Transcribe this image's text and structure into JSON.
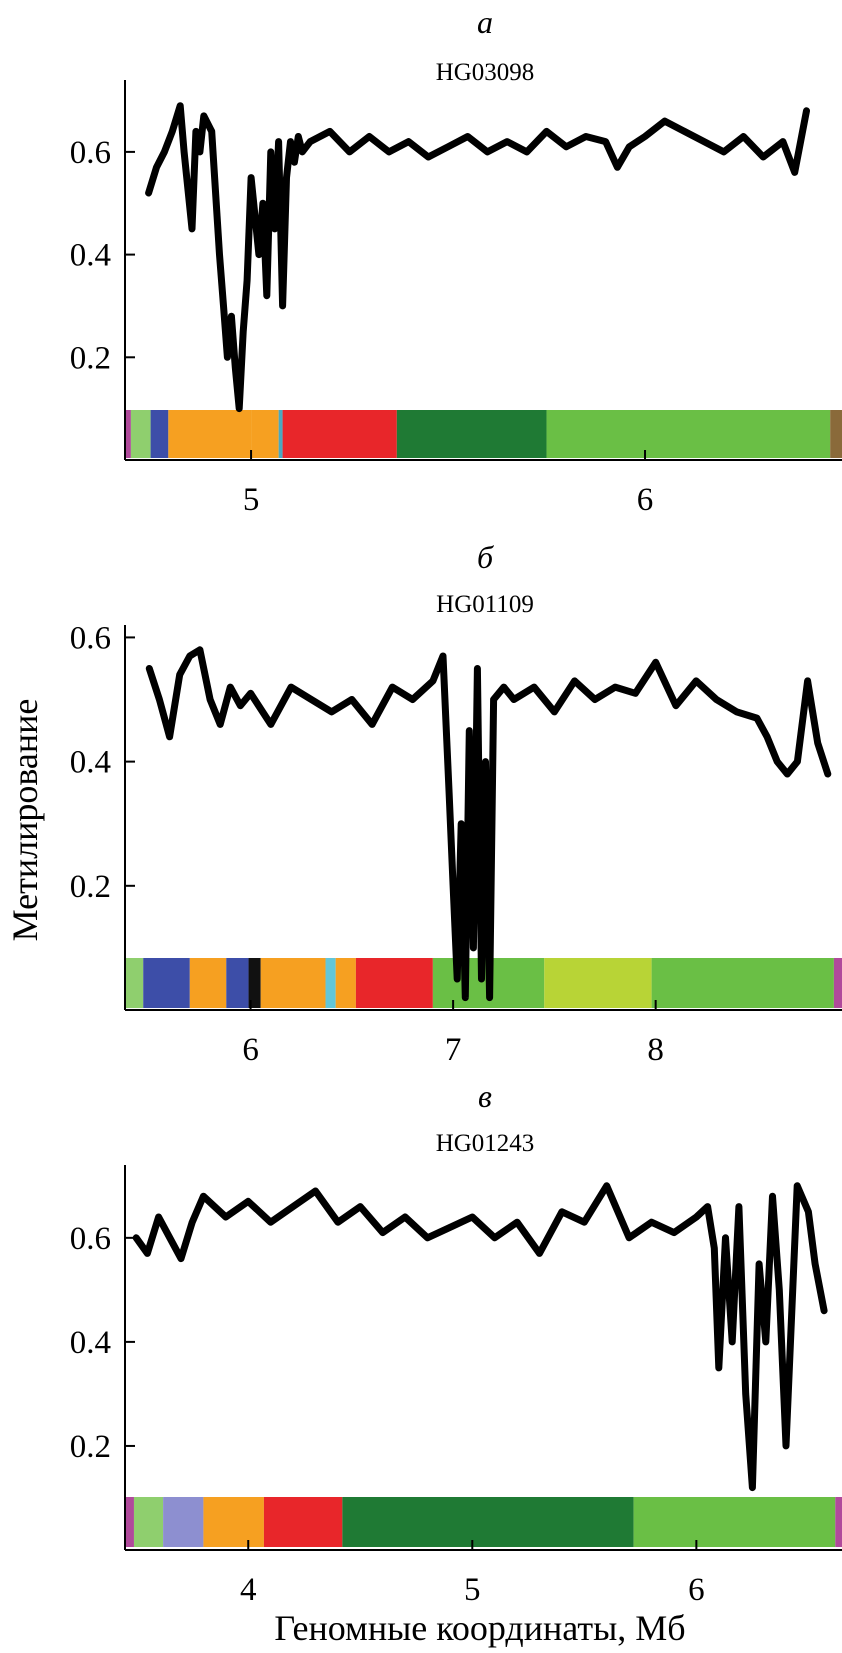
{
  "chart_data": [
    {
      "type": "line",
      "panel_label": "а",
      "title": "HG03098",
      "xlabel": "",
      "ylabel": "",
      "xlim": [
        4.68,
        6.5
      ],
      "ylim": [
        0,
        0.74
      ],
      "yticks": [
        0.2,
        0.4,
        0.6
      ],
      "ytick_labels": [
        "0.2",
        "0.4",
        "0.6"
      ],
      "xticks": [
        5,
        6
      ],
      "xtick_labels": [
        "5",
        "6"
      ],
      "series": [
        {
          "x": [
            4.74,
            4.76,
            4.78,
            4.8,
            4.82,
            4.83,
            4.85,
            4.86,
            4.87,
            4.88,
            4.9,
            4.92,
            4.93,
            4.94,
            4.95,
            4.96,
            4.97,
            4.98,
            4.99,
            5.0,
            5.02,
            5.03,
            5.04,
            5.05,
            5.06,
            5.07,
            5.08,
            5.09,
            5.1,
            5.11,
            5.12,
            5.13,
            5.15,
            5.2,
            5.25,
            5.3,
            5.35,
            5.4,
            5.45,
            5.5,
            5.55,
            5.6,
            5.65,
            5.7,
            5.75,
            5.8,
            5.85,
            5.9,
            5.93,
            5.96,
            6.0,
            6.05,
            6.1,
            6.15,
            6.2,
            6.25,
            6.3,
            6.35,
            6.38,
            6.41
          ],
          "y": [
            0.52,
            0.57,
            0.6,
            0.64,
            0.69,
            0.6,
            0.45,
            0.64,
            0.6,
            0.67,
            0.64,
            0.4,
            0.3,
            0.2,
            0.28,
            0.18,
            0.1,
            0.25,
            0.35,
            0.55,
            0.4,
            0.5,
            0.32,
            0.6,
            0.45,
            0.62,
            0.3,
            0.55,
            0.62,
            0.58,
            0.63,
            0.6,
            0.62,
            0.64,
            0.6,
            0.63,
            0.6,
            0.62,
            0.59,
            0.61,
            0.63,
            0.6,
            0.62,
            0.6,
            0.64,
            0.61,
            0.63,
            0.62,
            0.57,
            0.61,
            0.63,
            0.66,
            0.64,
            0.62,
            0.6,
            0.63,
            0.59,
            0.62,
            0.56,
            0.68
          ]
        }
      ],
      "color_band": [
        {
          "from": 4.68,
          "to": 4.695,
          "color": "#b04a9b"
        },
        {
          "from": 4.695,
          "to": 4.745,
          "color": "#8fcf6e"
        },
        {
          "from": 4.745,
          "to": 4.79,
          "color": "#3d4ea8"
        },
        {
          "from": 4.79,
          "to": 5.0,
          "color": "#f6a021"
        },
        {
          "from": 5.0,
          "to": 5.07,
          "color": "#f6a021"
        },
        {
          "from": 5.07,
          "to": 5.08,
          "color": "#4aa8c0"
        },
        {
          "from": 5.08,
          "to": 5.37,
          "color": "#e8262a"
        },
        {
          "from": 5.37,
          "to": 5.75,
          "color": "#1f7a34"
        },
        {
          "from": 5.75,
          "to": 6.47,
          "color": "#6abf45"
        },
        {
          "from": 6.47,
          "to": 6.5,
          "color": "#8a6a3a"
        }
      ]
    },
    {
      "type": "line",
      "panel_label": "б",
      "title": "HG01109",
      "xlabel": "",
      "ylabel": "Метилирование",
      "xlim": [
        5.38,
        8.92
      ],
      "ylim": [
        0,
        0.62
      ],
      "yticks": [
        0.2,
        0.4,
        0.6
      ],
      "ytick_labels": [
        "0.2",
        "0.4",
        "0.6"
      ],
      "xticks": [
        6,
        7,
        8
      ],
      "xtick_labels": [
        "6",
        "7",
        "8"
      ],
      "series": [
        {
          "x": [
            5.5,
            5.55,
            5.6,
            5.65,
            5.7,
            5.75,
            5.8,
            5.85,
            5.9,
            5.95,
            6.0,
            6.1,
            6.2,
            6.3,
            6.4,
            6.5,
            6.6,
            6.7,
            6.8,
            6.9,
            6.95,
            6.98,
            7.0,
            7.02,
            7.04,
            7.06,
            7.08,
            7.1,
            7.12,
            7.14,
            7.16,
            7.18,
            7.2,
            7.25,
            7.3,
            7.4,
            7.5,
            7.6,
            7.7,
            7.8,
            7.9,
            8.0,
            8.1,
            8.2,
            8.3,
            8.4,
            8.5,
            8.55,
            8.6,
            8.65,
            8.7,
            8.75,
            8.8,
            8.85
          ],
          "y": [
            0.55,
            0.5,
            0.44,
            0.54,
            0.57,
            0.58,
            0.5,
            0.46,
            0.52,
            0.49,
            0.51,
            0.46,
            0.52,
            0.5,
            0.48,
            0.5,
            0.46,
            0.52,
            0.5,
            0.53,
            0.57,
            0.35,
            0.2,
            0.05,
            0.3,
            0.02,
            0.45,
            0.1,
            0.55,
            0.05,
            0.4,
            0.02,
            0.5,
            0.52,
            0.5,
            0.52,
            0.48,
            0.53,
            0.5,
            0.52,
            0.51,
            0.56,
            0.49,
            0.53,
            0.5,
            0.48,
            0.47,
            0.44,
            0.4,
            0.38,
            0.4,
            0.53,
            0.43,
            0.38
          ]
        }
      ],
      "color_band": [
        {
          "from": 5.38,
          "to": 5.47,
          "color": "#8fcf6e"
        },
        {
          "from": 5.47,
          "to": 5.7,
          "color": "#3d4ea8"
        },
        {
          "from": 5.7,
          "to": 5.88,
          "color": "#f6a021"
        },
        {
          "from": 5.88,
          "to": 5.99,
          "color": "#3d4ea8"
        },
        {
          "from": 5.99,
          "to": 6.05,
          "color": "#111111"
        },
        {
          "from": 6.05,
          "to": 6.37,
          "color": "#f6a021"
        },
        {
          "from": 6.37,
          "to": 6.42,
          "color": "#62c6d8"
        },
        {
          "from": 6.42,
          "to": 6.52,
          "color": "#f6a021"
        },
        {
          "from": 6.52,
          "to": 6.9,
          "color": "#e8262a"
        },
        {
          "from": 6.9,
          "to": 7.45,
          "color": "#6abf45"
        },
        {
          "from": 7.45,
          "to": 7.98,
          "color": "#b8d436"
        },
        {
          "from": 7.98,
          "to": 8.88,
          "color": "#6abf45"
        },
        {
          "from": 8.88,
          "to": 8.92,
          "color": "#b04a9b"
        }
      ]
    },
    {
      "type": "line",
      "panel_label": "в",
      "title": "HG01243",
      "xlabel": "Геномные координаты, Мб",
      "ylabel": "",
      "xlim": [
        3.45,
        6.65
      ],
      "ylim": [
        0,
        0.74
      ],
      "yticks": [
        0.2,
        0.4,
        0.6
      ],
      "ytick_labels": [
        "0.2",
        "0.4",
        "0.6"
      ],
      "xticks": [
        4,
        5,
        6
      ],
      "xtick_labels": [
        "4",
        "5",
        "6"
      ],
      "series": [
        {
          "x": [
            3.5,
            3.55,
            3.6,
            3.65,
            3.7,
            3.75,
            3.8,
            3.9,
            4.0,
            4.1,
            4.2,
            4.3,
            4.4,
            4.5,
            4.6,
            4.7,
            4.8,
            4.9,
            5.0,
            5.1,
            5.2,
            5.3,
            5.4,
            5.5,
            5.6,
            5.7,
            5.8,
            5.9,
            6.0,
            6.05,
            6.08,
            6.1,
            6.13,
            6.16,
            6.19,
            6.22,
            6.25,
            6.28,
            6.31,
            6.34,
            6.37,
            6.4,
            6.45,
            6.5,
            6.53,
            6.57
          ],
          "y": [
            0.6,
            0.57,
            0.64,
            0.6,
            0.56,
            0.63,
            0.68,
            0.64,
            0.67,
            0.63,
            0.66,
            0.69,
            0.63,
            0.66,
            0.61,
            0.64,
            0.6,
            0.62,
            0.64,
            0.6,
            0.63,
            0.57,
            0.65,
            0.63,
            0.7,
            0.6,
            0.63,
            0.61,
            0.64,
            0.66,
            0.58,
            0.35,
            0.6,
            0.4,
            0.66,
            0.3,
            0.12,
            0.55,
            0.4,
            0.68,
            0.5,
            0.2,
            0.7,
            0.65,
            0.55,
            0.46
          ]
        }
      ],
      "color_band": [
        {
          "from": 3.45,
          "to": 3.49,
          "color": "#b04a9b"
        },
        {
          "from": 3.49,
          "to": 3.62,
          "color": "#8fcf6e"
        },
        {
          "from": 3.62,
          "to": 3.8,
          "color": "#8d8fd0"
        },
        {
          "from": 3.8,
          "to": 4.07,
          "color": "#f6a021"
        },
        {
          "from": 4.07,
          "to": 4.42,
          "color": "#e8262a"
        },
        {
          "from": 4.42,
          "to": 5.72,
          "color": "#1f7a34"
        },
        {
          "from": 5.72,
          "to": 6.62,
          "color": "#6abf45"
        },
        {
          "from": 6.62,
          "to": 6.65,
          "color": "#b04a9b"
        }
      ]
    }
  ]
}
